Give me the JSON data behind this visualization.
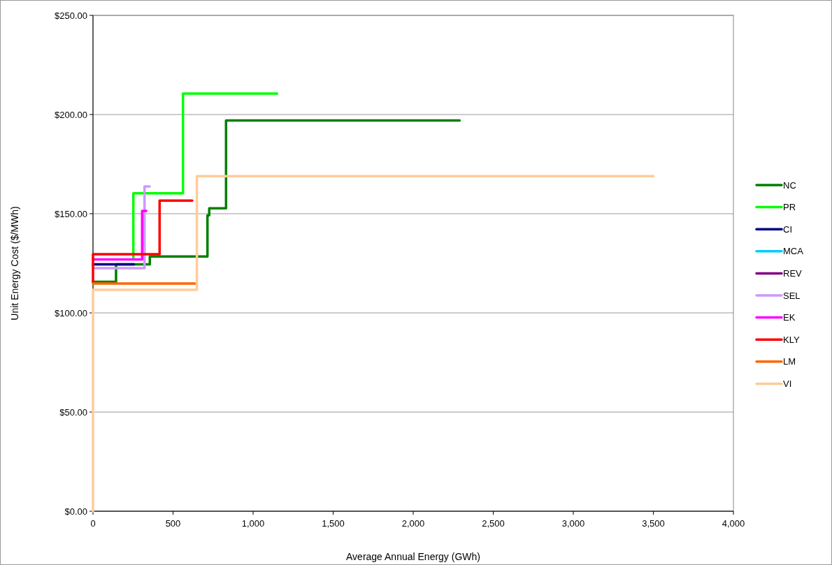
{
  "chart_data": {
    "type": "step",
    "xlabel": "Average Annual Energy (GWh)",
    "ylabel": "Unit Energy Cost ($/MWh)",
    "xlim": [
      0,
      4000
    ],
    "ylim": [
      0,
      250
    ],
    "xticks": [
      0,
      500,
      {
        "value": 1000,
        "label": "1,000"
      },
      {
        "value": 1500,
        "label": "1,500"
      },
      {
        "value": 2000,
        "label": "2,000"
      },
      {
        "value": 2500,
        "label": "2,500"
      },
      {
        "value": 3000,
        "label": "3,000"
      },
      {
        "value": 3500,
        "label": "3,500"
      },
      {
        "value": 4000,
        "label": "4,000"
      }
    ],
    "yticks": [
      {
        "value": 0,
        "label": "$0.00"
      },
      {
        "value": 50,
        "label": "$50.00"
      },
      {
        "value": 100,
        "label": "$100.00"
      },
      {
        "value": 150,
        "label": "$150.00"
      },
      {
        "value": 200,
        "label": "$200.00"
      },
      {
        "value": 250,
        "label": "$250.00"
      }
    ],
    "grid": "y",
    "legend": "right",
    "marker": "none",
    "line_style": "solid",
    "series": [
      {
        "name": "NC",
        "color": "#008000",
        "x": [
          0,
          144,
          355,
          715,
          726,
          831,
          2290
        ],
        "values": [
          115.7,
          124.5,
          128.4,
          149.2,
          152.7,
          197,
          197
        ]
      },
      {
        "name": "PR",
        "color": "#00ff00",
        "x": [
          252,
          252,
          562,
          1150
        ],
        "values": [
          128,
          160.3,
          210.6,
          210.6
        ]
      },
      {
        "name": "CI",
        "color": "#000080",
        "x": [
          0,
          256
        ],
        "values": [
          124.5,
          124.5
        ]
      },
      {
        "name": "MCA",
        "color": "#00ccff"
      },
      {
        "name": "REV",
        "color": "#800080"
      },
      {
        "name": "SEL",
        "color": "#cc99ff",
        "x": [
          0,
          322,
          354
        ],
        "values": [
          122.5,
          163.7,
          163.7
        ]
      },
      {
        "name": "EK",
        "color": "#ff00ff",
        "x": [
          0,
          307,
          333
        ],
        "values": [
          126.9,
          151.4,
          151.4
        ]
      },
      {
        "name": "KLY",
        "color": "#ff0000",
        "x": [
          0,
          0,
          416,
          620
        ],
        "values": [
          115.5,
          129.6,
          156.6,
          156.6
        ]
      },
      {
        "name": "LM",
        "color": "#ff6600",
        "x": [
          0,
          639
        ],
        "values": [
          114.8,
          114.8
        ]
      },
      {
        "name": "VI",
        "color": "#ffcc99",
        "x": [
          0,
          0,
          649,
          3500
        ],
        "values": [
          0,
          111.6,
          168.9,
          168.9
        ]
      }
    ]
  }
}
